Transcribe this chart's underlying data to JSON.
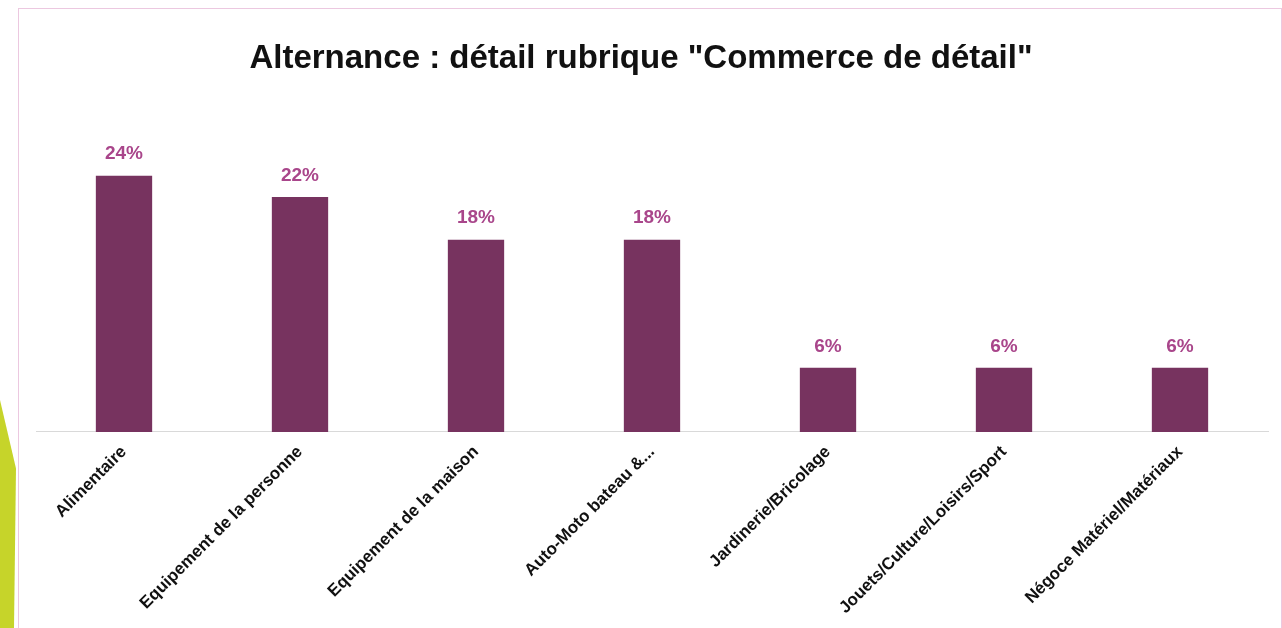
{
  "chart_data": {
    "type": "bar",
    "title": "Alternance : détail rubrique \"Commerce de détail\"",
    "categories": [
      "Alimentaire",
      "Equipement de la personne",
      "Equipement de la maison",
      "Auto-Moto bateau &...",
      "Jardinerie/Bricolage",
      "Jouets/Culture/Loisirs/Sport",
      "Négoce Matériel/Matériaux"
    ],
    "values": [
      24,
      22,
      18,
      18,
      6,
      6,
      6
    ],
    "value_labels": [
      "24%",
      "22%",
      "18%",
      "18%",
      "6%",
      "6%",
      "6%"
    ],
    "color": "#77335f",
    "grid": false,
    "legend": false
  }
}
